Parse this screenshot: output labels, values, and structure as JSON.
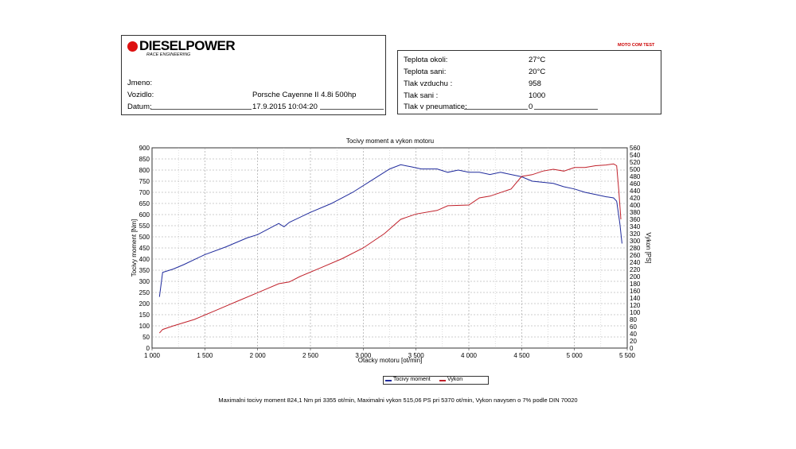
{
  "header": {
    "brand": "DIESELPOWER",
    "brand_sub": "RACE ENGINEERING",
    "badge": "MOTO COM TEST"
  },
  "info": {
    "jmeno_label": "Jmeno:",
    "jmeno_value": "",
    "vozidlo_label": "Vozidlo:",
    "vozidlo_value": "Porsche Cayenne II 4.8i 500hp",
    "datum_label": "Datum:",
    "datum_value": "17.9.2015 10:04:20"
  },
  "conditions": [
    {
      "label": "Teplota okoli:",
      "value": "27°C"
    },
    {
      "label": "Teplota sani:",
      "value": "20°C"
    },
    {
      "label": "Tlak vzduchu :",
      "value": "958"
    },
    {
      "label": "Tlak sani :",
      "value": "1000"
    },
    {
      "label": "Tlak v pneumatice:",
      "value": "0"
    }
  ],
  "legend": {
    "torque": "Tocivy moment",
    "power": "Vykon"
  },
  "footer": "Maximalni tocivy moment 824,1 Nm pri 3355 ot/min,  Maximalni vykon 515,06 PS pri 5370 ot/min,  Vykon navysen o 7% podle DIN 70020",
  "chart_data": {
    "type": "line",
    "title": "Tocivy moment a vykon motoru",
    "xlabel": "Otacky motoru [ot/min]",
    "ylabel": "Tocivy moment [Nm]",
    "y2label": "Vykon [PS]",
    "xlim": [
      1000,
      5500
    ],
    "ylim": [
      0,
      900
    ],
    "y2lim": [
      0,
      560
    ],
    "x_ticks": [
      1000,
      1500,
      2000,
      2500,
      3000,
      3500,
      4000,
      4500,
      5000,
      5500
    ],
    "x_tick_labels": [
      "1 000",
      "1 500",
      "2 000",
      "2 500",
      "3 000",
      "3 500",
      "4 000",
      "4 500",
      "5 000",
      "5 500"
    ],
    "y_ticks": [
      0,
      50,
      100,
      150,
      200,
      250,
      300,
      350,
      400,
      450,
      500,
      550,
      600,
      650,
      700,
      750,
      800,
      850,
      900
    ],
    "y2_ticks": [
      0,
      20,
      40,
      60,
      80,
      100,
      120,
      140,
      160,
      180,
      200,
      220,
      240,
      260,
      280,
      300,
      320,
      340,
      360,
      380,
      400,
      420,
      440,
      460,
      480,
      500,
      520,
      540,
      560
    ],
    "grid": true,
    "series": [
      {
        "name": "Tocivy moment",
        "color": "#1f2a9c",
        "axis": "left",
        "x": [
          1070,
          1100,
          1200,
          1300,
          1500,
          1700,
          1900,
          2000,
          2200,
          2250,
          2300,
          2500,
          2700,
          2900,
          3100,
          3250,
          3355,
          3450,
          3550,
          3700,
          3800,
          3900,
          4000,
          4100,
          4200,
          4300,
          4400,
          4500,
          4600,
          4700,
          4800,
          4900,
          5000,
          5100,
          5200,
          5300,
          5370,
          5400,
          5430,
          5450
        ],
        "y": [
          230,
          340,
          355,
          375,
          420,
          455,
          495,
          510,
          560,
          545,
          565,
          610,
          650,
          700,
          760,
          805,
          824,
          815,
          805,
          805,
          790,
          800,
          790,
          790,
          780,
          790,
          780,
          770,
          750,
          745,
          740,
          725,
          715,
          700,
          690,
          680,
          675,
          660,
          560,
          470
        ]
      },
      {
        "name": "Vykon",
        "color": "#c0202a",
        "axis": "right",
        "x": [
          1070,
          1100,
          1200,
          1400,
          1600,
          1800,
          2000,
          2200,
          2300,
          2400,
          2600,
          2800,
          3000,
          3200,
          3355,
          3500,
          3700,
          3800,
          4000,
          4100,
          4200,
          4300,
          4400,
          4500,
          4600,
          4700,
          4800,
          4900,
          5000,
          5100,
          5200,
          5300,
          5370,
          5400,
          5420,
          5440
        ],
        "y": [
          42,
          52,
          62,
          80,
          105,
          130,
          155,
          180,
          185,
          200,
          225,
          250,
          280,
          320,
          360,
          375,
          385,
          398,
          400,
          420,
          425,
          435,
          445,
          480,
          485,
          495,
          500,
          495,
          505,
          505,
          510,
          512,
          515,
          510,
          440,
          360
        ]
      }
    ]
  }
}
